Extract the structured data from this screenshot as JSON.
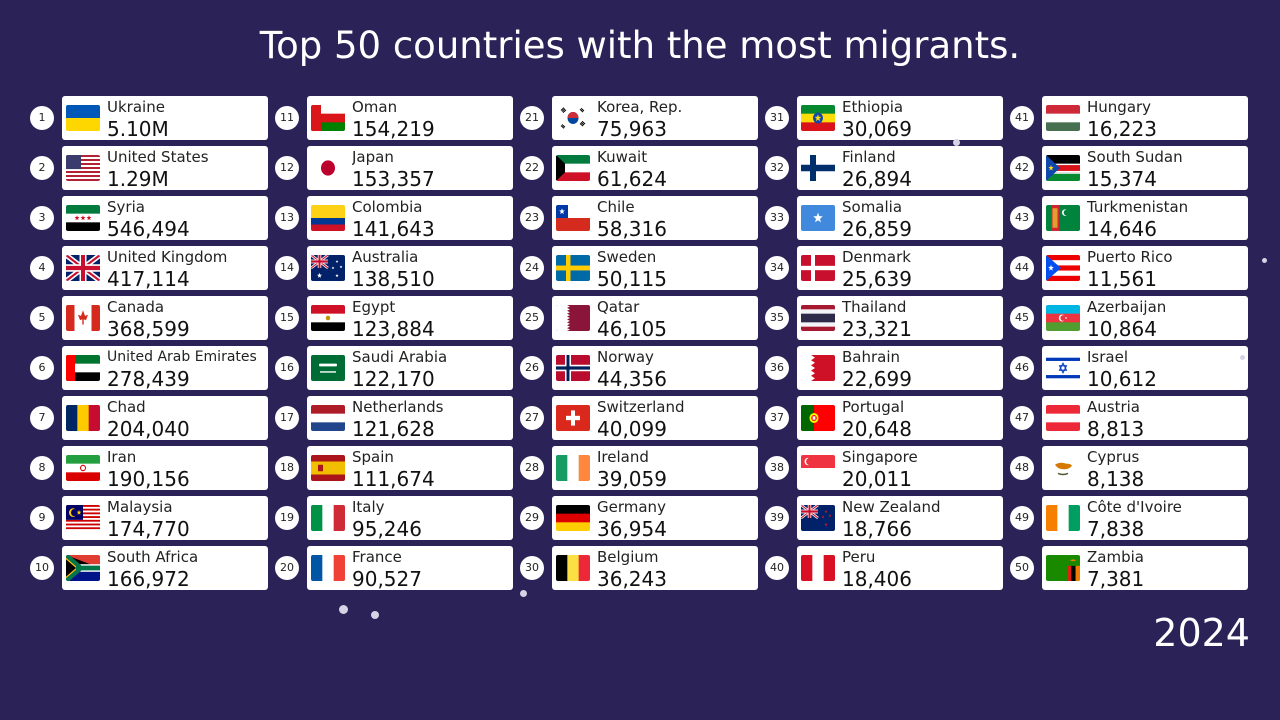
{
  "title": "Top 50 countries with the most migrants.",
  "year": "2024",
  "colors": {
    "background": "#2b2357",
    "card": "#ffffff",
    "text": "#111111"
  },
  "chart_data": {
    "type": "table",
    "title": "Top 50 countries with the most migrants.",
    "year": "2024",
    "rows": [
      {
        "rank": "1",
        "country": "Ukraine",
        "value": "5.10M",
        "flag": "ukraine-flag"
      },
      {
        "rank": "2",
        "country": "United States",
        "value": "1.29M",
        "flag": "united-states-flag"
      },
      {
        "rank": "3",
        "country": "Syria",
        "value": "546,494",
        "flag": "syria-flag"
      },
      {
        "rank": "4",
        "country": "United Kingdom",
        "value": "417,114",
        "flag": "united-kingdom-flag"
      },
      {
        "rank": "5",
        "country": "Canada",
        "value": "368,599",
        "flag": "canada-flag"
      },
      {
        "rank": "6",
        "country": "United Arab Emirates",
        "value": "278,439",
        "flag": "uae-flag"
      },
      {
        "rank": "7",
        "country": "Chad",
        "value": "204,040",
        "flag": "chad-flag"
      },
      {
        "rank": "8",
        "country": "Iran",
        "value": "190,156",
        "flag": "iran-flag"
      },
      {
        "rank": "9",
        "country": "Malaysia",
        "value": "174,770",
        "flag": "malaysia-flag"
      },
      {
        "rank": "10",
        "country": "South Africa",
        "value": "166,972",
        "flag": "south-africa-flag"
      },
      {
        "rank": "11",
        "country": "Oman",
        "value": "154,219",
        "flag": "oman-flag"
      },
      {
        "rank": "12",
        "country": "Japan",
        "value": "153,357",
        "flag": "japan-flag"
      },
      {
        "rank": "13",
        "country": "Colombia",
        "value": "141,643",
        "flag": "colombia-flag"
      },
      {
        "rank": "14",
        "country": "Australia",
        "value": "138,510",
        "flag": "australia-flag"
      },
      {
        "rank": "15",
        "country": "Egypt",
        "value": "123,884",
        "flag": "egypt-flag"
      },
      {
        "rank": "16",
        "country": "Saudi Arabia",
        "value": "122,170",
        "flag": "saudi-arabia-flag"
      },
      {
        "rank": "17",
        "country": "Netherlands",
        "value": "121,628",
        "flag": "netherlands-flag"
      },
      {
        "rank": "18",
        "country": "Spain",
        "value": "111,674",
        "flag": "spain-flag"
      },
      {
        "rank": "19",
        "country": "Italy",
        "value": "95,246",
        "flag": "italy-flag"
      },
      {
        "rank": "20",
        "country": "France",
        "value": "90,527",
        "flag": "france-flag"
      },
      {
        "rank": "21",
        "country": "Korea, Rep.",
        "value": "75,963",
        "flag": "south-korea-flag"
      },
      {
        "rank": "22",
        "country": "Kuwait",
        "value": "61,624",
        "flag": "kuwait-flag"
      },
      {
        "rank": "23",
        "country": "Chile",
        "value": "58,316",
        "flag": "chile-flag"
      },
      {
        "rank": "24",
        "country": "Sweden",
        "value": "50,115",
        "flag": "sweden-flag"
      },
      {
        "rank": "25",
        "country": "Qatar",
        "value": "46,105",
        "flag": "qatar-flag"
      },
      {
        "rank": "26",
        "country": "Norway",
        "value": "44,356",
        "flag": "norway-flag"
      },
      {
        "rank": "27",
        "country": "Switzerland",
        "value": "40,099",
        "flag": "switzerland-flag"
      },
      {
        "rank": "28",
        "country": "Ireland",
        "value": "39,059",
        "flag": "ireland-flag"
      },
      {
        "rank": "29",
        "country": "Germany",
        "value": "36,954",
        "flag": "germany-flag"
      },
      {
        "rank": "30",
        "country": "Belgium",
        "value": "36,243",
        "flag": "belgium-flag"
      },
      {
        "rank": "31",
        "country": "Ethiopia",
        "value": "30,069",
        "flag": "ethiopia-flag"
      },
      {
        "rank": "32",
        "country": "Finland",
        "value": "26,894",
        "flag": "finland-flag"
      },
      {
        "rank": "33",
        "country": "Somalia",
        "value": "26,859",
        "flag": "somalia-flag"
      },
      {
        "rank": "34",
        "country": "Denmark",
        "value": "25,639",
        "flag": "denmark-flag"
      },
      {
        "rank": "35",
        "country": "Thailand",
        "value": "23,321",
        "flag": "thailand-flag"
      },
      {
        "rank": "36",
        "country": "Bahrain",
        "value": "22,699",
        "flag": "bahrain-flag"
      },
      {
        "rank": "37",
        "country": "Portugal",
        "value": "20,648",
        "flag": "portugal-flag"
      },
      {
        "rank": "38",
        "country": "Singapore",
        "value": "20,011",
        "flag": "singapore-flag"
      },
      {
        "rank": "39",
        "country": "New Zealand",
        "value": "18,766",
        "flag": "new-zealand-flag"
      },
      {
        "rank": "40",
        "country": "Peru",
        "value": "18,406",
        "flag": "peru-flag"
      },
      {
        "rank": "41",
        "country": "Hungary",
        "value": "16,223",
        "flag": "hungary-flag"
      },
      {
        "rank": "42",
        "country": "South Sudan",
        "value": "15,374",
        "flag": "south-sudan-flag"
      },
      {
        "rank": "43",
        "country": "Turkmenistan",
        "value": "14,646",
        "flag": "turkmenistan-flag"
      },
      {
        "rank": "44",
        "country": "Puerto Rico",
        "value": "11,561",
        "flag": "puerto-rico-flag"
      },
      {
        "rank": "45",
        "country": "Azerbaijan",
        "value": "10,864",
        "flag": "azerbaijan-flag"
      },
      {
        "rank": "46",
        "country": "Israel",
        "value": "10,612",
        "flag": "israel-flag"
      },
      {
        "rank": "47",
        "country": "Austria",
        "value": "8,813",
        "flag": "austria-flag"
      },
      {
        "rank": "48",
        "country": "Cyprus",
        "value": "8,138",
        "flag": "cyprus-flag"
      },
      {
        "rank": "49",
        "country": "Côte d'Ivoire",
        "value": "7,838",
        "flag": "cote-divoire-flag"
      },
      {
        "rank": "50",
        "country": "Zambia",
        "value": "7,381",
        "flag": "zambia-flag"
      }
    ]
  }
}
